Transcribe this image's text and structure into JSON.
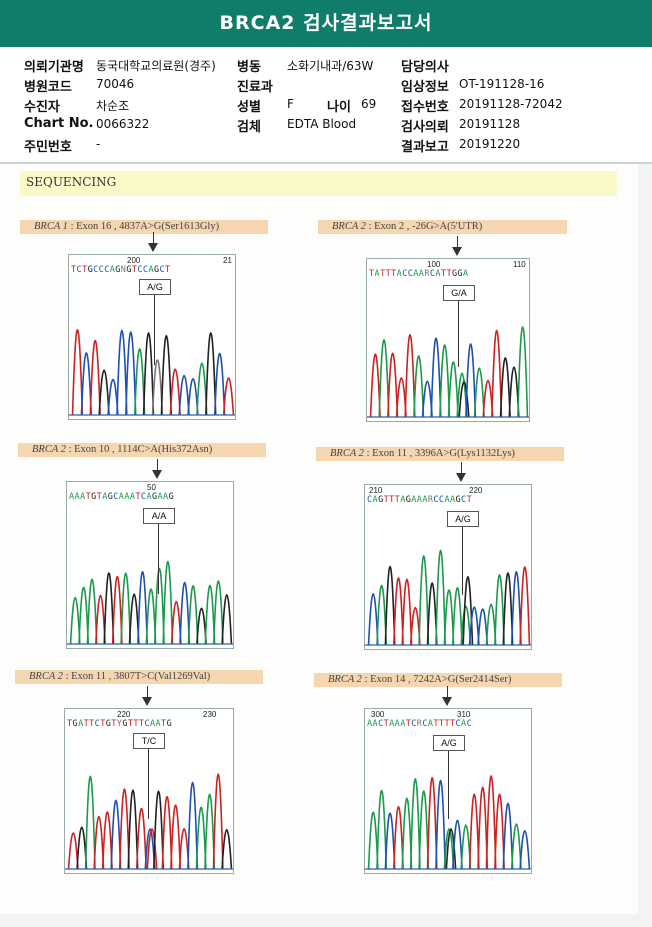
{
  "report": {
    "title": "BRCA2 검사결과보고서"
  },
  "info": {
    "institution_label": "의뢰기관명",
    "institution_value": "동국대학교의료원(경주)",
    "ward_label": "병동",
    "ward_value": "소화기내과/63W",
    "doctor_label": "담당의사",
    "doctor_value": "",
    "hospital_code_label": "병원코드",
    "hospital_code_value": "70046",
    "dept_label": "진료과",
    "dept_value": "",
    "clinical_label": "임상정보",
    "clinical_value": "OT-191128-16",
    "patient_label": "수진자",
    "patient_value": "차순조",
    "sex_label": "성별",
    "sex_value": "F",
    "age_label": "나이",
    "age_value": "69",
    "receipt_label": "접수번호",
    "receipt_value": "20191128-72042",
    "chart_label": "Chart No.",
    "chart_value": "0066322",
    "specimen_label": "검체",
    "specimen_value": "EDTA Blood",
    "request_label": "검사의뢰",
    "request_value": "20191128",
    "rrn_label": "주민번호",
    "rrn_value": "-",
    "result_label": "결과보고",
    "result_value": "20191220"
  },
  "section_title": "SEQUENCING",
  "panels": [
    {
      "gene": "BRCA 1",
      "desc": ": Exon 16 , 4837A>G(Ser1613Gly)",
      "pos1": "200",
      "pos2": "21",
      "sequence": "TCTGCCCAGNGTCCAGCT",
      "call": "A/G"
    },
    {
      "gene": "BRCA 2",
      "desc": ": Exon 2 , -26G>A(5'UTR)",
      "pos1": "100",
      "pos2": "110",
      "sequence": "TATTTACCAARCATTGGA",
      "call": "G/A"
    },
    {
      "gene": "BRCA 2",
      "desc": ": Exon 10 , 1114C>A(His372Asn)",
      "pos1": "50",
      "pos2": "",
      "sequence": "AAATGTAGCAAATCAGAAG",
      "call": "A/A"
    },
    {
      "gene": "BRCA 2",
      "desc": ": Exon 11 , 3396A>G(Lys1132Lys)",
      "pos1": "210",
      "pos2": "220",
      "sequence": "CAGTTTAGAAARCCAAGCT",
      "call": "A/G"
    },
    {
      "gene": "BRCA 2",
      "desc": ": Exon 11 , 3807T>C(Val1269Val)",
      "pos1": "220",
      "pos2": "230",
      "sequence": "TGATTCTGTYGTTTCAATG",
      "call": "T/C"
    },
    {
      "gene": "BRCA 2",
      "desc": ": Exon 14 , 7242A>G(Ser2414Ser)",
      "pos1": "300",
      "pos2": "310",
      "sequence": "AACTAAATCRCATTTTCAC",
      "call": "A/G"
    }
  ],
  "base_colors": {
    "A": "#1a9a4a",
    "C": "#1f4fb0",
    "G": "#222222",
    "T": "#cc2222",
    "N": "#777777"
  }
}
